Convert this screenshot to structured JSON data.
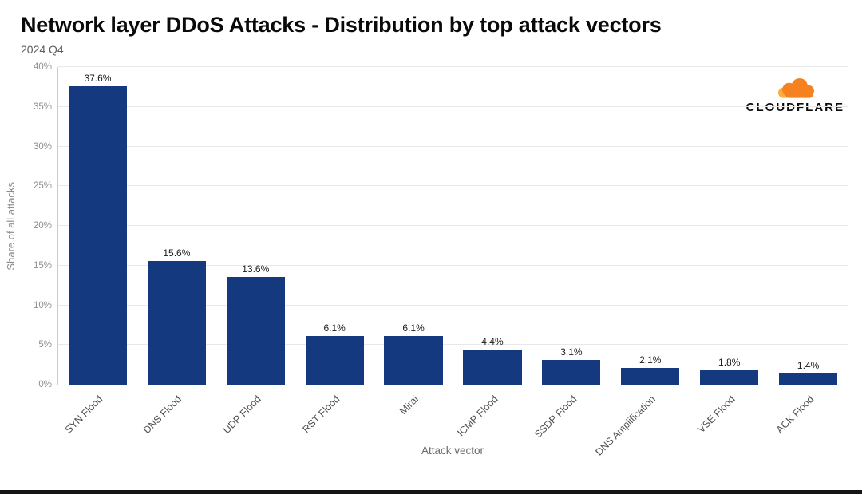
{
  "logo": {
    "text": "CLOUDFLARE",
    "cloud_color": "#F6821F",
    "cloud_accent": "#FBAD41"
  },
  "chart_data": {
    "type": "bar",
    "title": "Network layer DDoS Attacks - Distribution by top attack vectors",
    "subtitle": "2024 Q4",
    "categories": [
      "SYN Flood",
      "DNS Flood",
      "UDP Flood",
      "RST Flood",
      "Mirai",
      "ICMP Flood",
      "SSDP Flood",
      "DNS Amplification",
      "VSE Flood",
      "ACK Flood"
    ],
    "values": [
      37.6,
      15.6,
      13.6,
      6.1,
      6.1,
      4.4,
      3.1,
      2.1,
      1.8,
      1.4
    ],
    "value_labels": [
      "37.6%",
      "15.6%",
      "13.6%",
      "6.1%",
      "6.1%",
      "4.4%",
      "3.1%",
      "2.1%",
      "1.8%",
      "1.4%"
    ],
    "xlabel": "Attack vector",
    "ylabel": "Share of all attacks",
    "ylim": [
      0,
      40
    ],
    "ytick_step": 5,
    "ytick_labels": [
      "0%",
      "5%",
      "10%",
      "15%",
      "20%",
      "25%",
      "30%",
      "35%",
      "40%"
    ],
    "bar_color": "#15397F",
    "grid": true,
    "gridline_color": "#e8e8e8",
    "axis_line_color": "#cccccc",
    "legend": "none"
  }
}
